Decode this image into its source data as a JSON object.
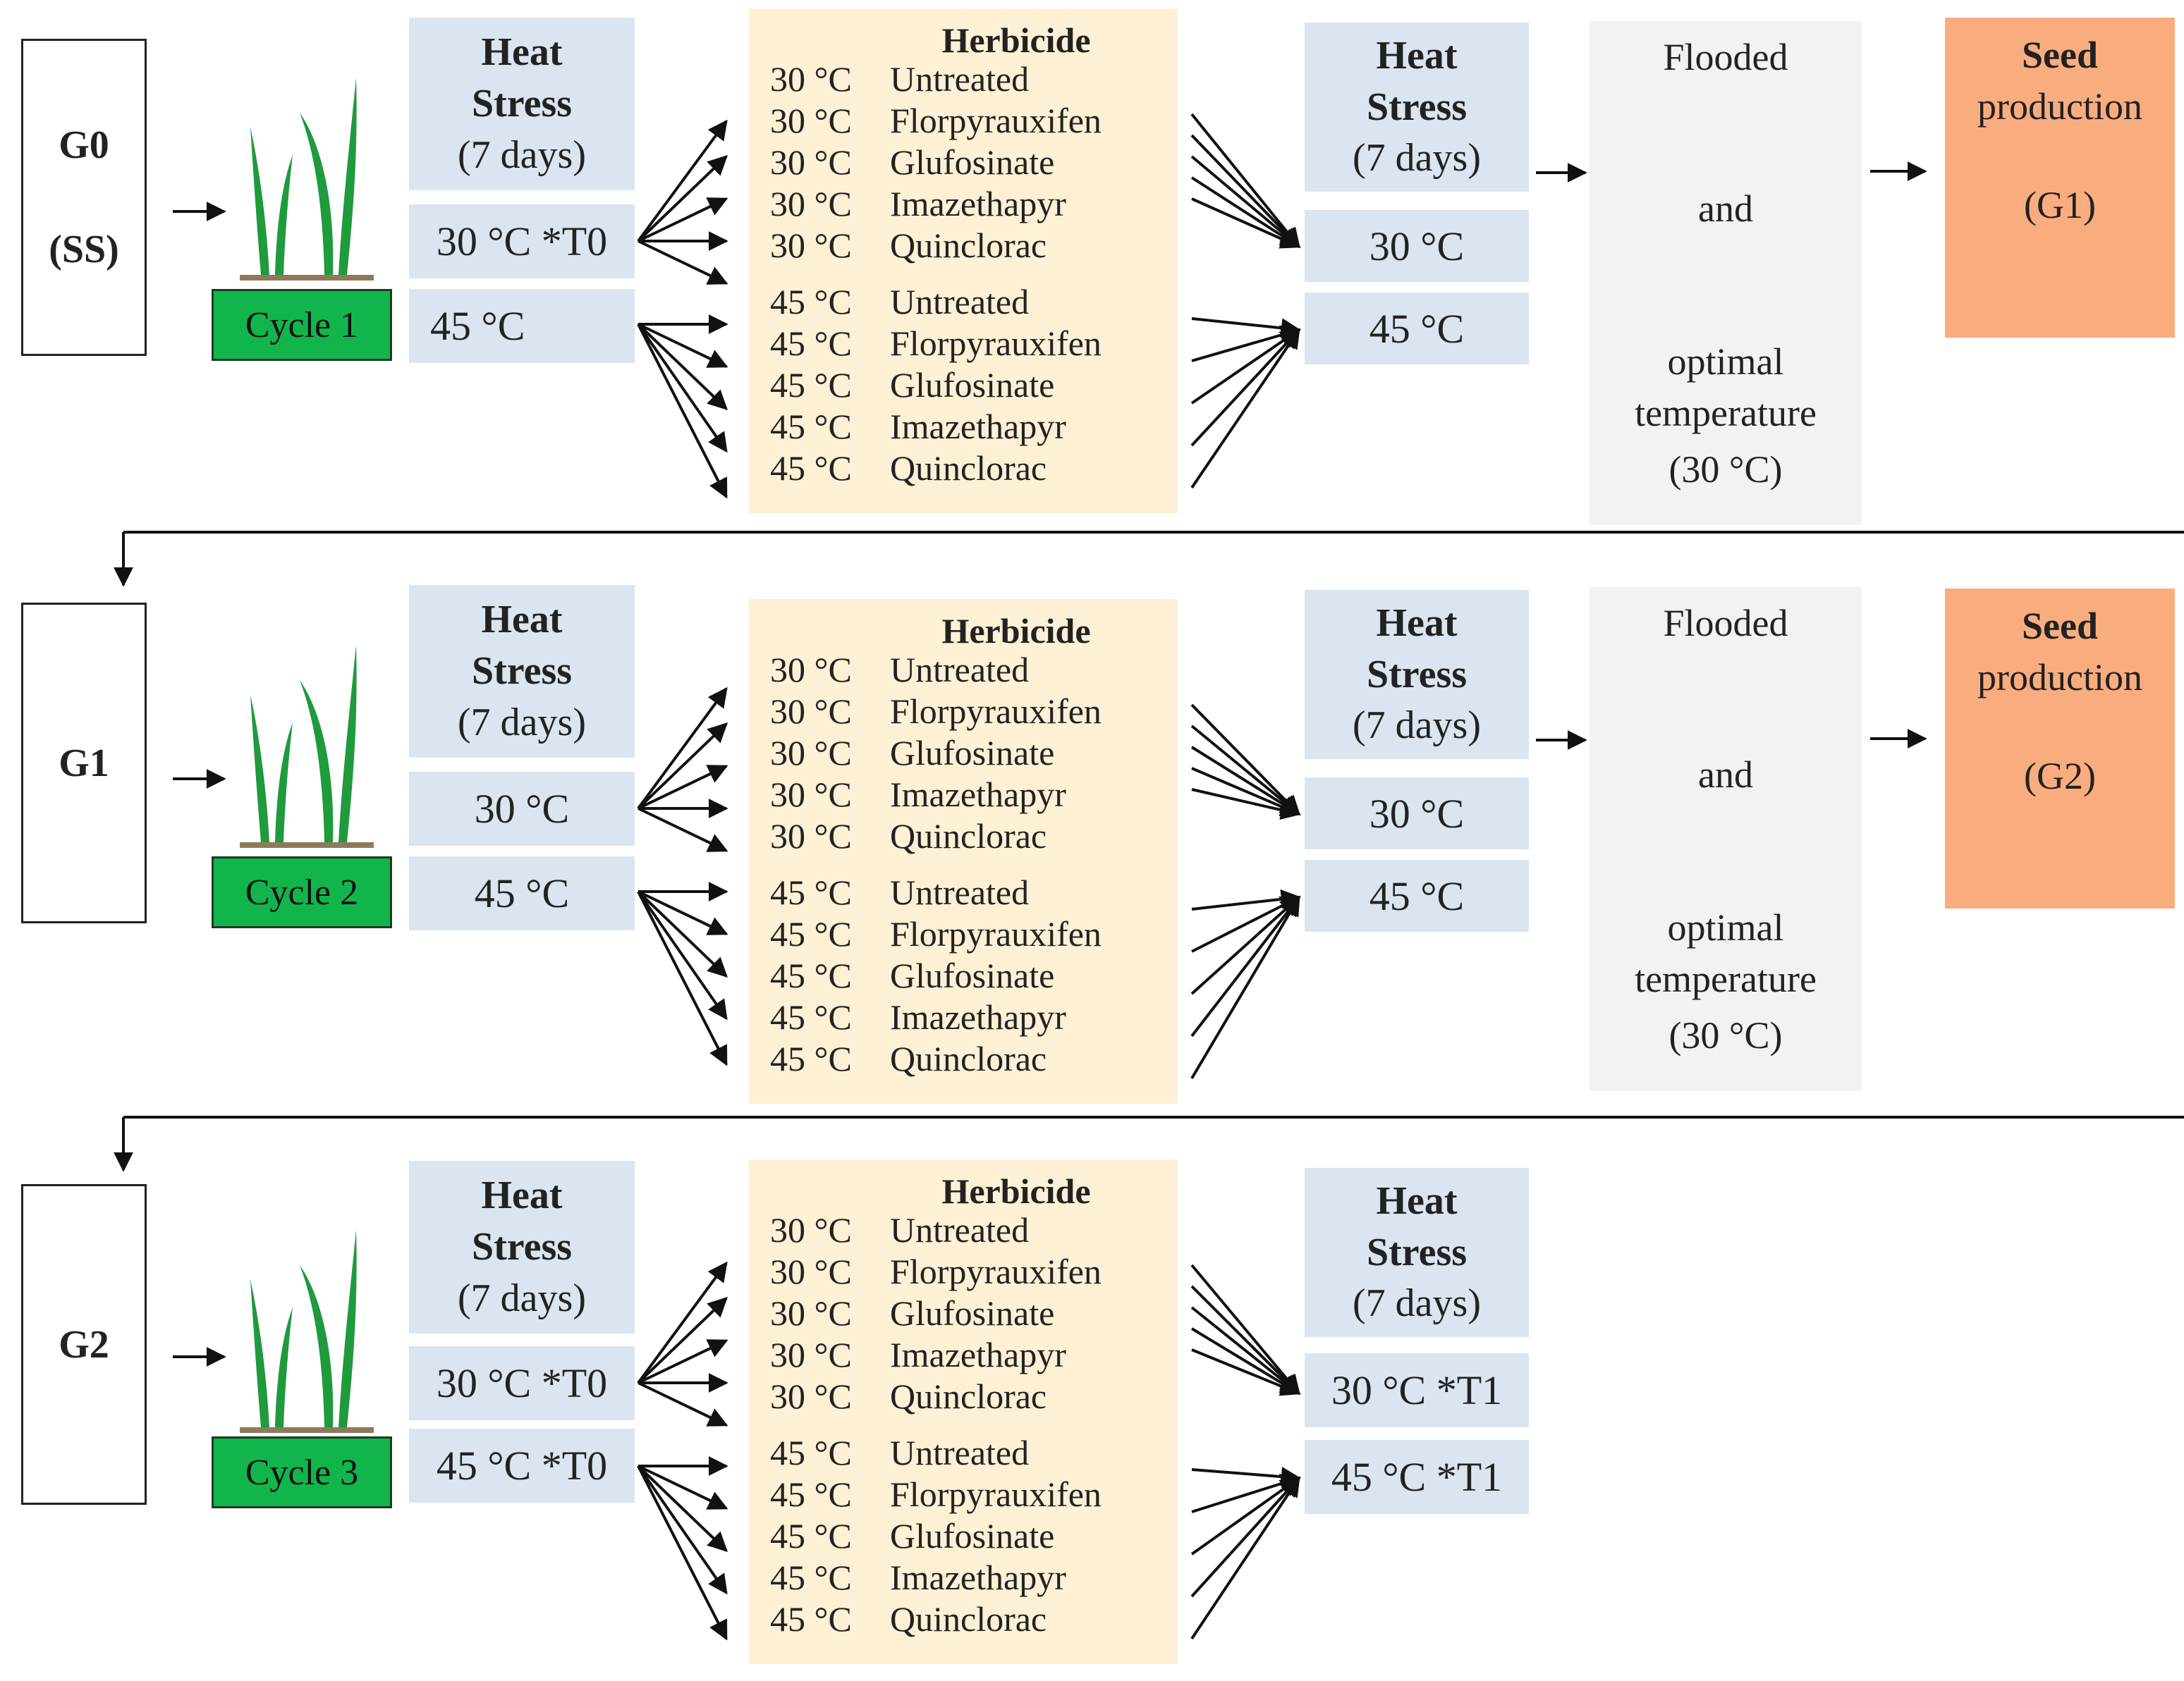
{
  "stages": [
    {
      "generation": "G0",
      "generation_sub": "(SS)",
      "cycle_label": "Cycle 1",
      "heat_stress_1": {
        "title_line1": "Heat",
        "title_line2": "Stress",
        "duration": "(7 days)",
        "temp_30": "30 °C *T0",
        "temp_45": "45 °C"
      },
      "herbicide_title": "Herbicide",
      "herbicide_rows": [
        {
          "temp": "30 °C",
          "name": "Untreated"
        },
        {
          "temp": "30 °C",
          "name": "Florpyrauxifen"
        },
        {
          "temp": "30 °C",
          "name": "Glufosinate"
        },
        {
          "temp": "30 °C",
          "name": "Imazethapyr"
        },
        {
          "temp": "30 °C",
          "name": "Quinclorac"
        },
        {
          "temp": "45 °C",
          "name": "Untreated"
        },
        {
          "temp": "45 °C",
          "name": "Florpyrauxifen"
        },
        {
          "temp": "45 °C",
          "name": "Glufosinate"
        },
        {
          "temp": "45 °C",
          "name": "Imazethapyr"
        },
        {
          "temp": "45 °C",
          "name": "Quinclorac"
        }
      ],
      "heat_stress_2": {
        "title_line1": "Heat",
        "title_line2": "Stress",
        "duration": "(7 days)",
        "temp_30": "30 °C",
        "temp_45": "45 °C"
      },
      "flooded": {
        "line1": "Flooded",
        "line2": "and",
        "line3": "optimal",
        "line4": "temperature",
        "line5": "(30 °C)"
      },
      "seed": {
        "line1": "Seed",
        "line2": "production",
        "line3": "(G1)"
      }
    },
    {
      "generation": "G1",
      "generation_sub": "",
      "cycle_label": "Cycle 2",
      "heat_stress_1": {
        "title_line1": "Heat",
        "title_line2": "Stress",
        "duration": "(7 days)",
        "temp_30": "30 °C",
        "temp_45": "45 °C"
      },
      "herbicide_title": "Herbicide",
      "herbicide_rows": [
        {
          "temp": "30 °C",
          "name": "Untreated"
        },
        {
          "temp": "30 °C",
          "name": "Florpyrauxifen"
        },
        {
          "temp": "30 °C",
          "name": "Glufosinate"
        },
        {
          "temp": "30 °C",
          "name": "Imazethapyr"
        },
        {
          "temp": "30 °C",
          "name": "Quinclorac"
        },
        {
          "temp": "45 °C",
          "name": "Untreated"
        },
        {
          "temp": "45 °C",
          "name": "Florpyrauxifen"
        },
        {
          "temp": "45 °C",
          "name": "Glufosinate"
        },
        {
          "temp": "45 °C",
          "name": "Imazethapyr"
        },
        {
          "temp": "45 °C",
          "name": "Quinclorac"
        }
      ],
      "heat_stress_2": {
        "title_line1": "Heat",
        "title_line2": "Stress",
        "duration": "(7 days)",
        "temp_30": "30 °C",
        "temp_45": "45 °C"
      },
      "flooded": {
        "line1": "Flooded",
        "line2": "and",
        "line3": "optimal",
        "line4": "temperature",
        "line5": "(30 °C)"
      },
      "seed": {
        "line1": "Seed",
        "line2": "production",
        "line3": "(G2)"
      }
    },
    {
      "generation": "G2",
      "generation_sub": "",
      "cycle_label": "Cycle 3",
      "heat_stress_1": {
        "title_line1": "Heat",
        "title_line2": "Stress",
        "duration": "(7 days)",
        "temp_30": "30 °C *T0",
        "temp_45": "45 °C *T0"
      },
      "herbicide_title": "Herbicide",
      "herbicide_rows": [
        {
          "temp": "30 °C",
          "name": "Untreated"
        },
        {
          "temp": "30 °C",
          "name": "Florpyrauxifen"
        },
        {
          "temp": "30 °C",
          "name": "Glufosinate"
        },
        {
          "temp": "30 °C",
          "name": "Imazethapyr"
        },
        {
          "temp": "30 °C",
          "name": "Quinclorac"
        },
        {
          "temp": "45 °C",
          "name": "Untreated"
        },
        {
          "temp": "45 °C",
          "name": "Florpyrauxifen"
        },
        {
          "temp": "45 °C",
          "name": "Glufosinate"
        },
        {
          "temp": "45 °C",
          "name": "Imazethapyr"
        },
        {
          "temp": "45 °C",
          "name": "Quinclorac"
        }
      ],
      "heat_stress_2": {
        "title_line1": "Heat",
        "title_line2": "Stress",
        "duration": "(7 days)",
        "temp_30": "30 °C *T1",
        "temp_45": "45 °C *T1"
      }
    }
  ],
  "colors": {
    "heat_stress_box": "#dbe5f1",
    "herbicide_box": "#fdf0d5",
    "flooded_box": "#f2f2f2",
    "seed_box": "#f9ad7f",
    "cycle_box": "#12b54b",
    "plant": "#1f9a3c"
  }
}
